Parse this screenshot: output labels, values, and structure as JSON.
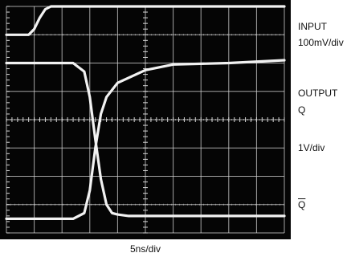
{
  "labels": {
    "input": "INPUT",
    "input_scale": "100mV/div",
    "output": "OUTPUT",
    "q": "Q",
    "output_scale": "1V/div",
    "qbar": "Q",
    "time_scale": "5ns/div"
  },
  "chart_data": {
    "type": "line",
    "title": "",
    "xlabel": "5ns/div",
    "grid": true,
    "divisions": {
      "x": 10,
      "y": 8
    },
    "x_unit": "ns",
    "xlim": [
      0,
      50
    ],
    "y_unit": "div",
    "ylim": [
      -4,
      4
    ],
    "series": [
      {
        "name": "INPUT",
        "scale": "100mV/div",
        "x": [
          0,
          4,
          5,
          6,
          7,
          8,
          50
        ],
        "y": [
          3.0,
          3.0,
          3.2,
          3.6,
          3.9,
          4.0,
          4.0
        ]
      },
      {
        "name": "Q",
        "scale": "1V/div",
        "x": [
          0,
          12,
          14,
          15,
          16,
          17,
          18,
          20,
          25,
          30,
          40,
          50
        ],
        "y": [
          -3.5,
          -3.5,
          -3.3,
          -2.5,
          -1.0,
          0.2,
          0.8,
          1.3,
          1.75,
          1.95,
          2.0,
          2.1
        ]
      },
      {
        "name": "Q",
        "scale": "1V/div",
        "x": [
          0,
          12,
          14,
          15,
          16,
          17,
          18,
          19,
          20,
          22,
          50
        ],
        "y": [
          2.0,
          2.0,
          1.7,
          0.8,
          -0.7,
          -2.1,
          -3.0,
          -3.3,
          -3.35,
          -3.4,
          -3.4
        ]
      }
    ]
  },
  "colors": {
    "screen": "#050505",
    "trace": "#f2f2f2",
    "grid": "#d8d8d8",
    "label": "#111111"
  }
}
